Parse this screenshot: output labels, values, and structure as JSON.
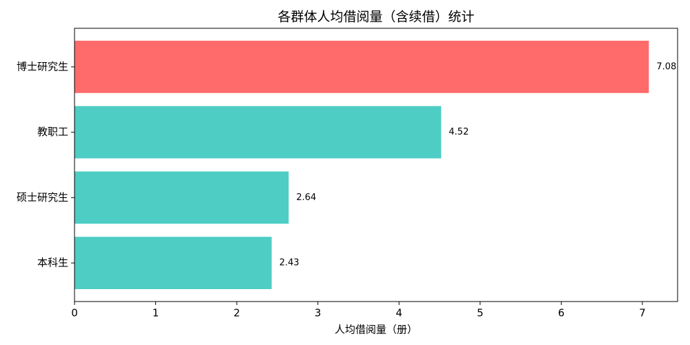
{
  "chart_data": {
    "type": "barh",
    "title": "各群体人均借阅量（含续借）统计",
    "xlabel": "人均借阅量（册）",
    "categories": [
      "博士研究生",
      "教职工",
      "硕士研究生",
      "本科生"
    ],
    "values": [
      7.08,
      4.52,
      2.64,
      2.43
    ],
    "colors": [
      "#ff6b6b",
      "#4ecdc4",
      "#4ecdc4",
      "#4ecdc4"
    ],
    "xlim": [
      0,
      7.434
    ],
    "xticks": [
      0,
      1,
      2,
      3,
      4,
      5,
      6,
      7
    ],
    "grid": false
  }
}
